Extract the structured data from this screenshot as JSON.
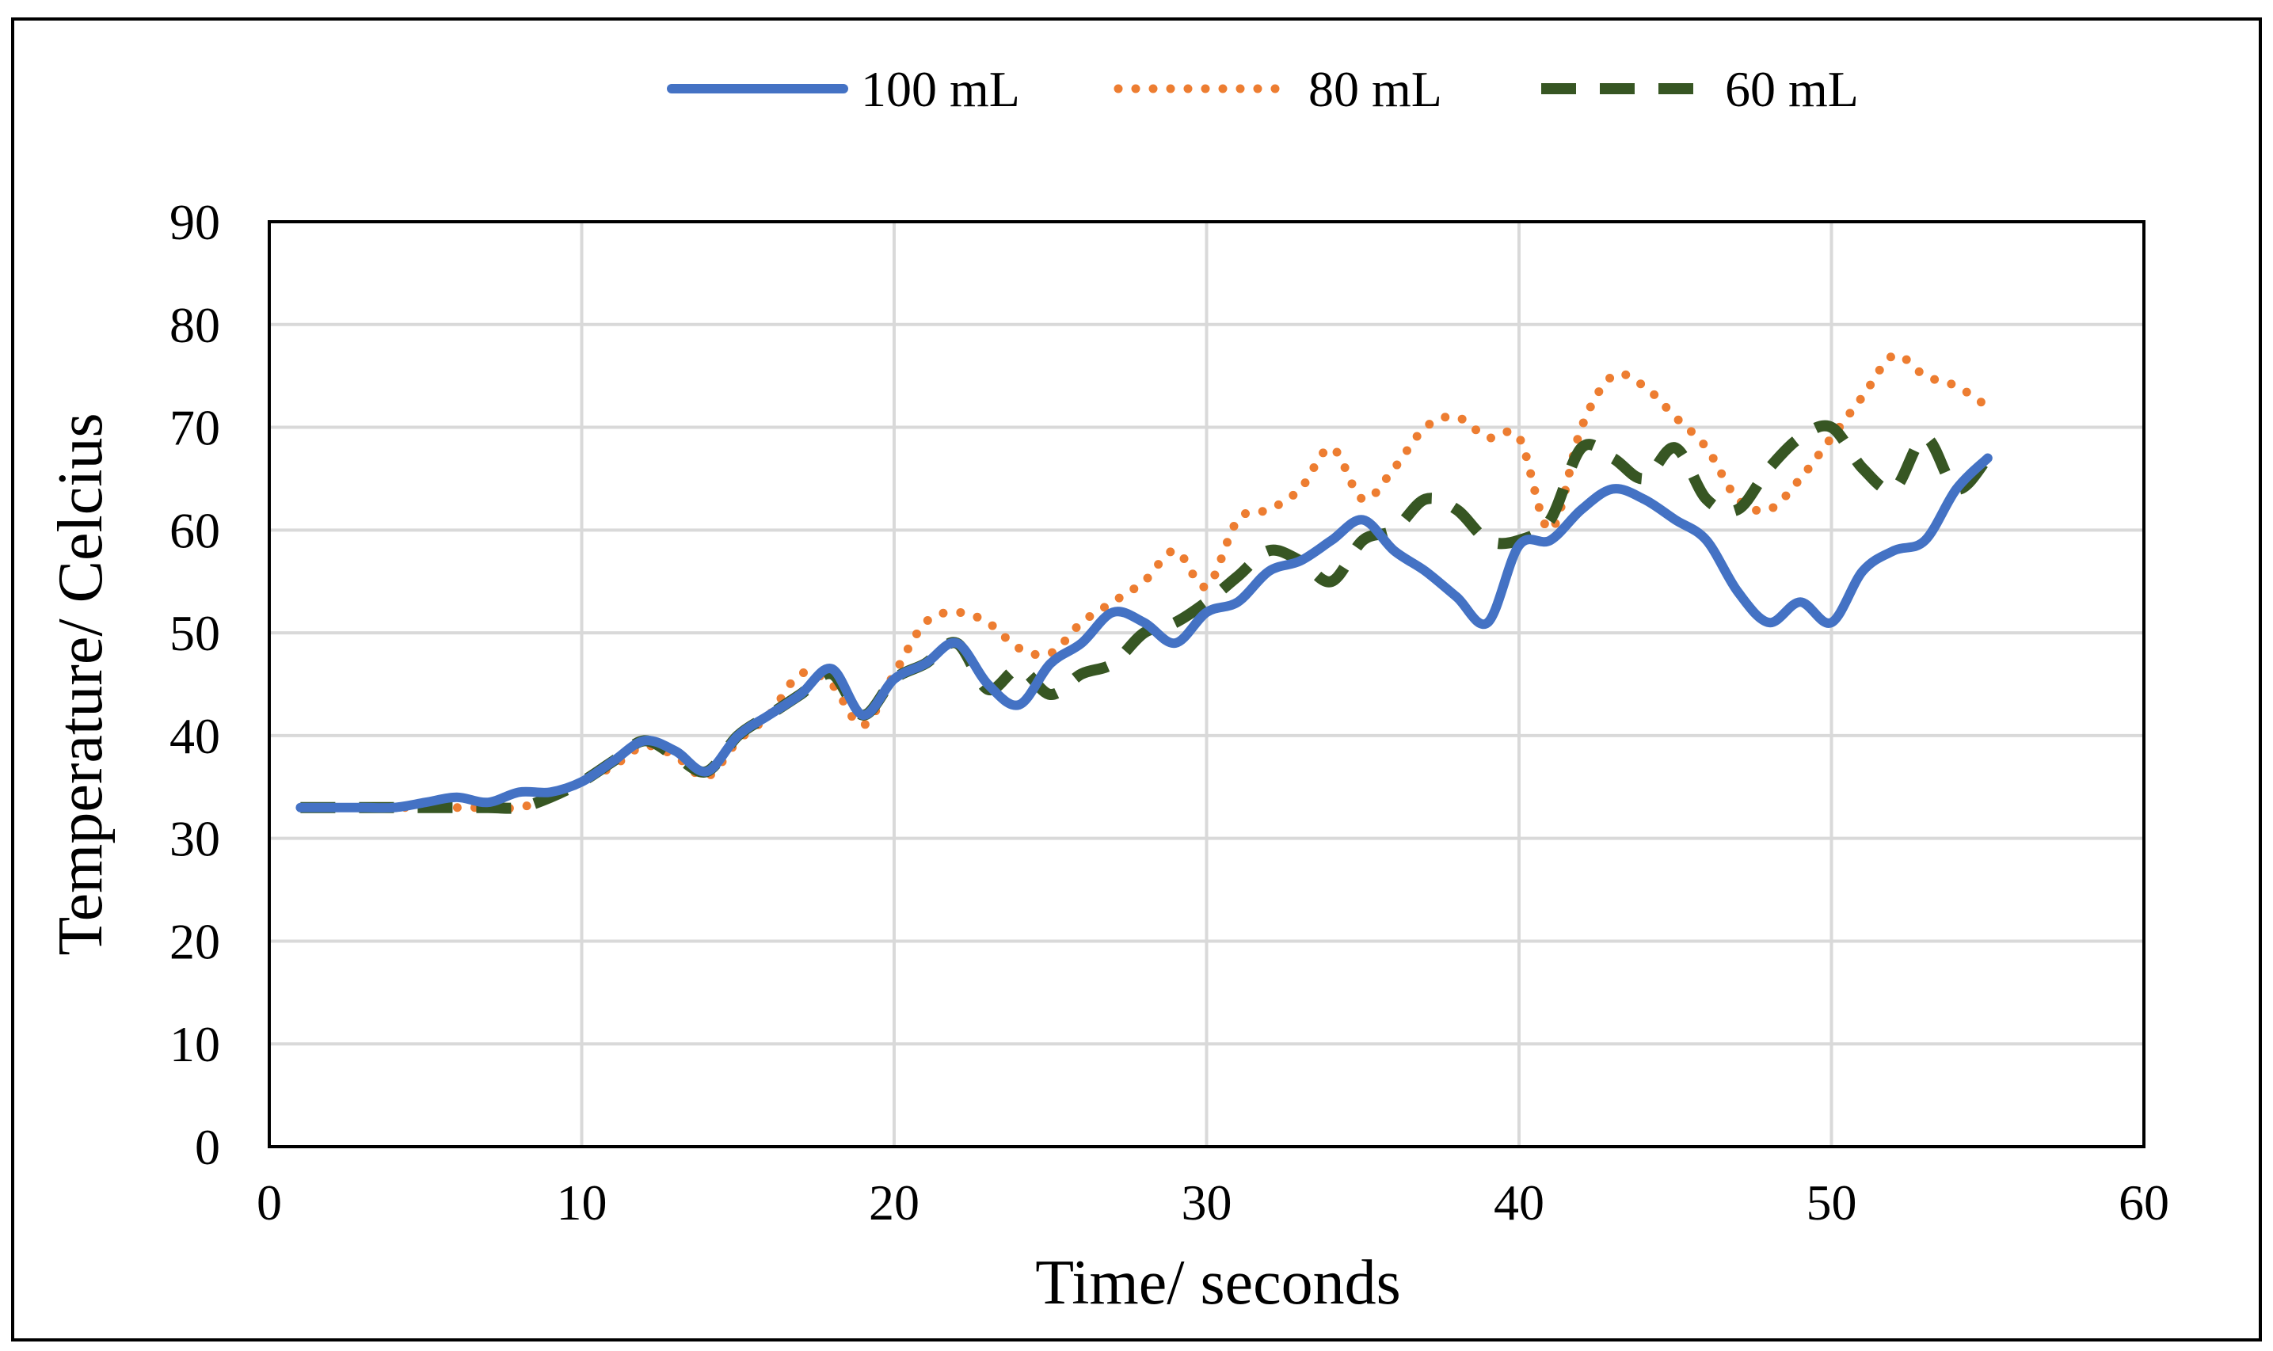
{
  "chart_data": {
    "type": "line",
    "title": "",
    "xlabel": "Time/ seconds",
    "ylabel": "Temperature/ Celcius",
    "xlim": [
      0,
      60
    ],
    "ylim": [
      0,
      90
    ],
    "xticks": [
      0,
      10,
      20,
      30,
      40,
      50,
      60
    ],
    "yticks": [
      0,
      10,
      20,
      30,
      40,
      50,
      60,
      70,
      80,
      90
    ],
    "grid": true,
    "legend_position": "top",
    "series": [
      {
        "name": "100 mL",
        "style": "solid",
        "color": "#4472C4",
        "x": [
          1,
          2,
          3,
          4,
          5,
          6,
          7,
          8,
          9,
          10,
          11,
          12,
          13,
          14,
          15,
          16,
          17,
          18,
          19,
          20,
          21,
          22,
          23,
          24,
          25,
          26,
          27,
          28,
          29,
          30,
          31,
          32,
          33,
          34,
          35,
          36,
          37,
          38,
          39,
          40,
          41,
          42,
          43,
          44,
          45,
          46,
          47,
          48,
          49,
          50,
          51,
          52,
          53,
          54,
          55
        ],
        "values": [
          33,
          33,
          33,
          33,
          33.5,
          34,
          33.5,
          34.5,
          34.5,
          35.5,
          37.5,
          39.5,
          38.5,
          36.5,
          40,
          42,
          44,
          46.5,
          42,
          45.5,
          47,
          49,
          45,
          43,
          47,
          49,
          52,
          51,
          49,
          52,
          53,
          56,
          57,
          59,
          61,
          58,
          56,
          53.5,
          51,
          58.5,
          59,
          62,
          64,
          63,
          61,
          59,
          54,
          51,
          53,
          51,
          56,
          58,
          59,
          64,
          67
        ]
      },
      {
        "name": "80 mL",
        "style": "dotted",
        "color": "#ED7D31",
        "x": [
          1,
          2,
          3,
          4,
          5,
          6,
          7,
          8,
          9,
          10,
          11,
          12,
          13,
          14,
          15,
          16,
          17,
          18,
          19,
          20,
          21,
          22,
          23,
          24,
          25,
          26,
          27,
          28,
          29,
          30,
          31,
          32,
          33,
          34,
          35,
          36,
          37,
          38,
          39,
          40,
          41,
          42,
          43,
          44,
          45,
          46,
          47,
          48,
          49,
          50,
          51,
          52,
          53,
          54,
          55
        ],
        "values": [
          33,
          33,
          33,
          33,
          33,
          33,
          33,
          33,
          34,
          35.5,
          37,
          39,
          38,
          36,
          39.5,
          42,
          46,
          45,
          41,
          46,
          51,
          52,
          51,
          48.5,
          48,
          51,
          53,
          55,
          58,
          54.5,
          61,
          62,
          64,
          68,
          63,
          66,
          70,
          71,
          69,
          69,
          60,
          70,
          75,
          74,
          71,
          68,
          63,
          62,
          65,
          69,
          73,
          77,
          75,
          74,
          72
        ]
      },
      {
        "name": "60 mL",
        "style": "dashed",
        "color": "#375623",
        "x": [
          1,
          2,
          3,
          4,
          5,
          6,
          7,
          8,
          9,
          10,
          11,
          12,
          13,
          14,
          15,
          16,
          17,
          18,
          19,
          20,
          21,
          22,
          23,
          24,
          25,
          26,
          27,
          28,
          29,
          30,
          31,
          32,
          33,
          34,
          35,
          36,
          37,
          38,
          39,
          40,
          41,
          42,
          43,
          44,
          45,
          46,
          47,
          48,
          49,
          50,
          51,
          52,
          53,
          54,
          55
        ],
        "values": [
          33,
          33,
          33,
          33,
          33,
          33,
          33,
          33,
          34,
          35.5,
          37.5,
          39.5,
          38,
          36.5,
          40,
          42,
          44,
          46,
          42,
          45.5,
          47,
          49,
          44.5,
          46.5,
          44,
          46,
          47,
          50,
          51,
          53,
          55.5,
          58,
          57,
          55,
          59,
          60,
          63,
          62,
          59,
          59,
          61,
          68,
          67,
          65,
          68,
          63,
          62,
          66,
          69,
          70,
          66,
          64,
          69,
          64,
          67
        ]
      }
    ]
  }
}
